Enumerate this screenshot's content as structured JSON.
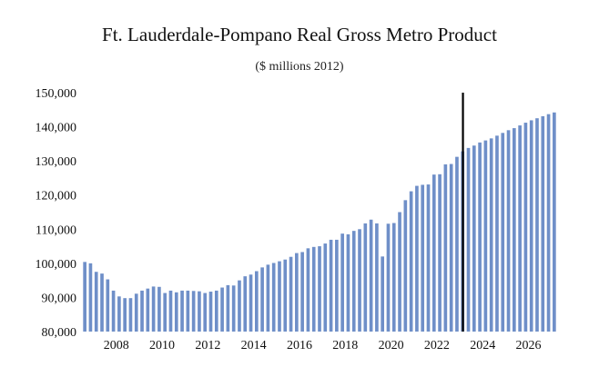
{
  "chart_data": {
    "type": "bar",
    "title": "Ft. Lauderdale-Pompano Real Gross Metro Product",
    "subtitle": "($ millions 2012)",
    "xlabel": "",
    "ylabel": "",
    "ylim": [
      80000,
      150000
    ],
    "yticks": [
      "80,000",
      "90,000",
      "100,000",
      "110,000",
      "120,000",
      "130,000",
      "140,000",
      "150,000"
    ],
    "xticks": [
      "2008",
      "2010",
      "2012",
      "2014",
      "2016",
      "2018",
      "2020",
      "2022",
      "2024",
      "2026"
    ],
    "x_start_year": 2007,
    "periods_per_year": 4,
    "forecast_marker": "2023Q3",
    "bar_color": "#6f8fc8",
    "marker_color": "#000000",
    "grid": false,
    "values": [
      100400,
      100000,
      97500,
      97000,
      95300,
      92000,
      90300,
      89800,
      89800,
      91100,
      92000,
      92600,
      93200,
      93100,
      91300,
      92000,
      91500,
      92000,
      92000,
      91900,
      91800,
      91300,
      91700,
      92000,
      92900,
      93600,
      93500,
      95000,
      96200,
      96700,
      97700,
      98800,
      99600,
      100100,
      100600,
      101100,
      101900,
      103000,
      103300,
      104400,
      104800,
      105000,
      105800,
      106900,
      106900,
      108700,
      108500,
      109500,
      110000,
      111700,
      112800,
      111700,
      102000,
      111600,
      111800,
      115000,
      118500,
      121100,
      122700,
      123000,
      123100,
      126000,
      126100,
      129000,
      129100,
      131200,
      132800,
      133800,
      134500,
      135400,
      136000,
      136600,
      137400,
      138200,
      139000,
      139600,
      140400,
      141200,
      141900,
      142500,
      143100,
      143700,
      144200
    ]
  }
}
